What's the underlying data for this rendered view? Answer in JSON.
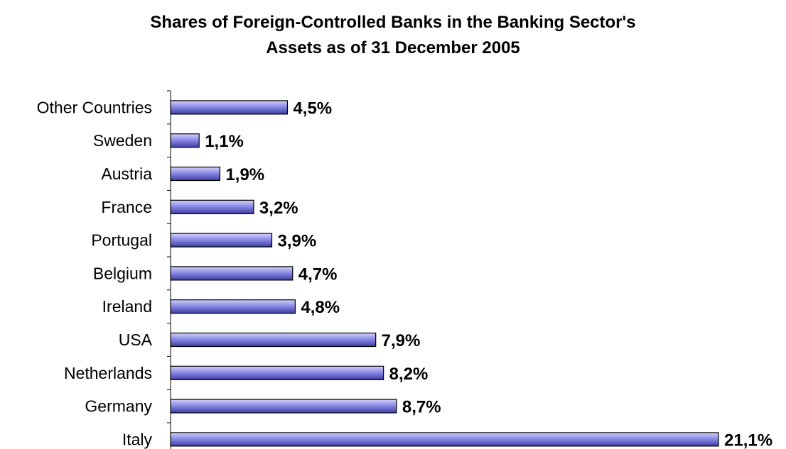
{
  "chart_data": {
    "type": "bar",
    "orientation": "horizontal",
    "title_lines": [
      "Shares of Foreign-Controlled Banks in the Banking Sector's",
      "Assets as of 31 December 2005"
    ],
    "categories": [
      "Other Countries",
      "Sweden",
      "Austria",
      "France",
      "Portugal",
      "Belgium",
      "Ireland",
      "USA",
      "Netherlands",
      "Germany",
      "Italy"
    ],
    "values": [
      4.5,
      1.1,
      1.9,
      3.2,
      3.9,
      4.7,
      4.8,
      7.9,
      8.2,
      8.7,
      21.1
    ],
    "value_labels": [
      "4,5%",
      "1,1%",
      "1,9%",
      "3,2%",
      "3,9%",
      "4,7%",
      "4,8%",
      "7,9%",
      "8,2%",
      "8,7%",
      "21,1%"
    ],
    "xlabel": "",
    "ylabel": "",
    "xlim": [
      0,
      21.1
    ],
    "grid": false,
    "legend": "none",
    "bar_color": "#8080e6"
  }
}
